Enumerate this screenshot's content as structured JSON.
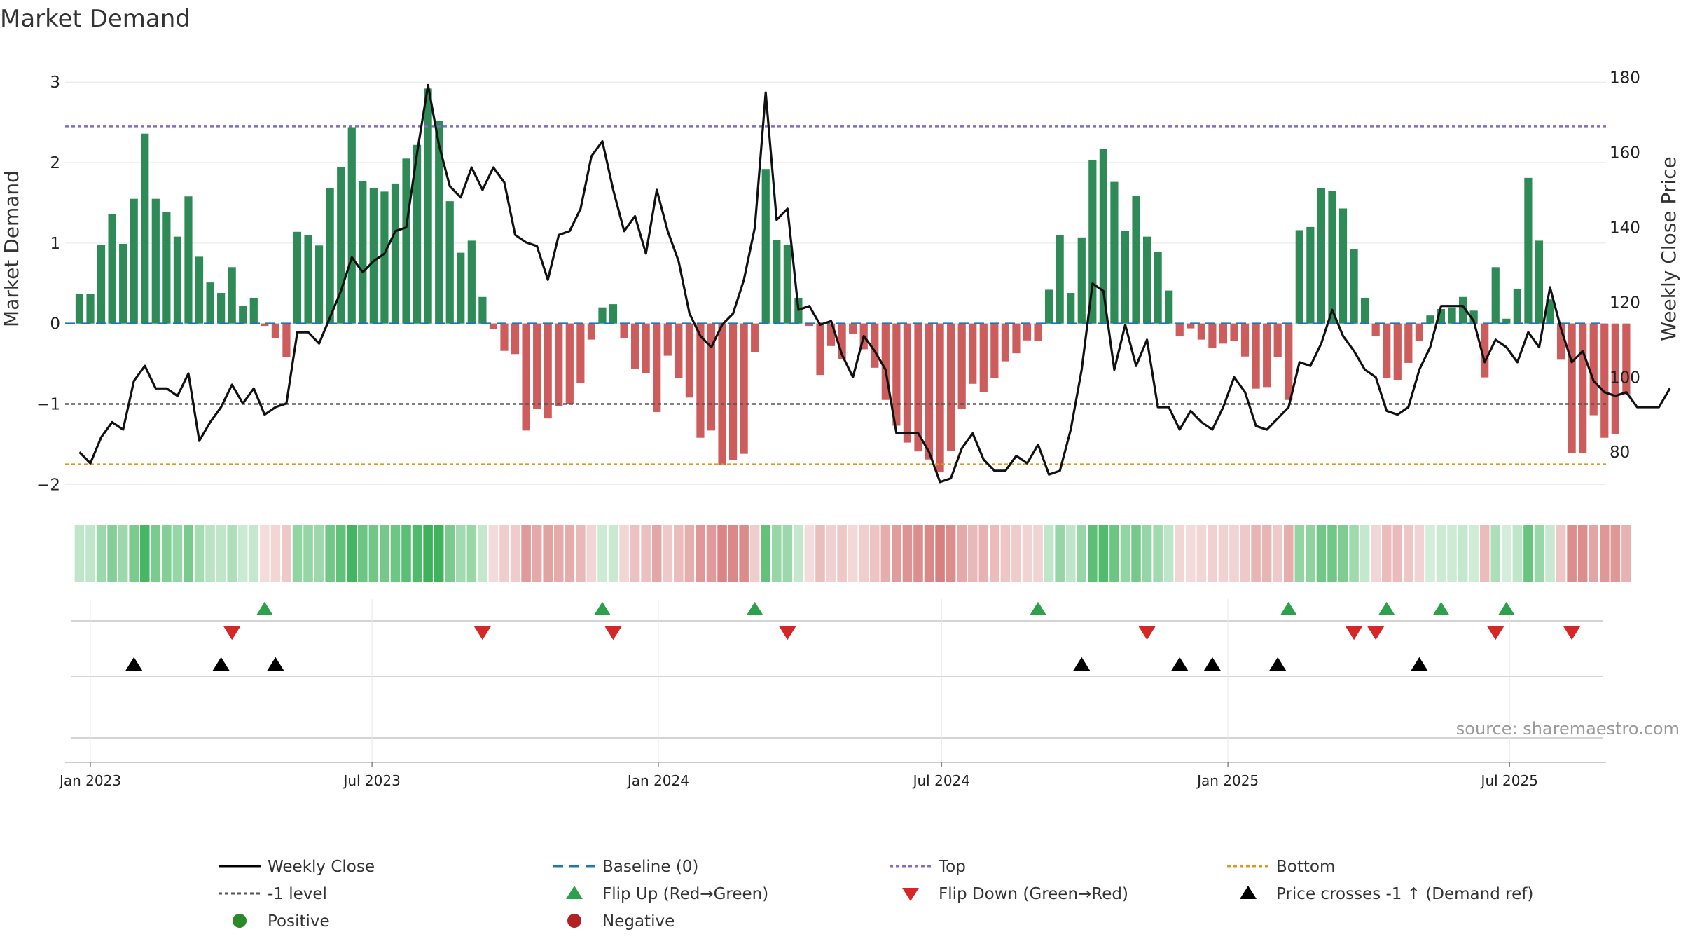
{
  "chart_data": {
    "type": "bar",
    "title": "Market Demand",
    "ylabel": "Market Demand",
    "y2label": "Weekly Close Price",
    "ylim": [
      -2.25,
      3.15
    ],
    "y2lim": [
      66,
      182
    ],
    "yticks": [
      -2,
      -1,
      0,
      1,
      2,
      3
    ],
    "y2ticks": [
      80,
      100,
      120,
      140,
      160,
      180
    ],
    "x_start_date": "2023-01-01",
    "x_end_date": "2025-09-01",
    "xticks": [
      {
        "date": "2023-01-01",
        "label": "Jan 2023"
      },
      {
        "date": "2023-07-01",
        "label": "Jul 2023"
      },
      {
        "date": "2024-01-01",
        "label": "Jan 2024"
      },
      {
        "date": "2024-07-01",
        "label": "Jul 2024"
      },
      {
        "date": "2025-01-01",
        "label": "Jan 2025"
      },
      {
        "date": "2025-07-01",
        "label": "Jul 2025"
      }
    ],
    "first_week": "2022-12-25",
    "levels": {
      "top": 2.45,
      "minus_one": -1.0,
      "bottom": -1.75,
      "baseline": 0
    },
    "demand": [
      0.37,
      0.37,
      0.98,
      1.36,
      0.99,
      1.55,
      2.36,
      1.55,
      1.39,
      1.08,
      1.58,
      0.83,
      0.51,
      0.38,
      0.7,
      0.22,
      0.32,
      -0.03,
      -0.18,
      -0.42,
      1.14,
      1.1,
      0.97,
      1.68,
      1.94,
      2.44,
      1.77,
      1.68,
      1.64,
      1.74,
      2.05,
      2.22,
      2.92,
      2.52,
      1.52,
      0.88,
      1.03,
      0.33,
      -0.07,
      -0.34,
      -0.38,
      -1.33,
      -1.06,
      -1.18,
      -1.03,
      -1.0,
      -0.74,
      -0.2,
      0.2,
      0.24,
      -0.18,
      -0.56,
      -0.62,
      -1.1,
      -0.4,
      -0.68,
      -0.92,
      -1.42,
      -1.33,
      -1.76,
      -1.7,
      -1.62,
      -0.36,
      1.92,
      1.04,
      0.98,
      0.32,
      -0.03,
      -0.64,
      -0.28,
      -0.44,
      -0.13,
      -0.32,
      -0.55,
      -0.95,
      -1.27,
      -1.48,
      -1.59,
      -1.69,
      -1.85,
      -1.58,
      -1.06,
      -0.75,
      -0.85,
      -0.68,
      -0.47,
      -0.37,
      -0.21,
      -0.22,
      0.42,
      1.1,
      0.38,
      1.07,
      2.03,
      2.17,
      1.76,
      1.15,
      1.59,
      1.08,
      0.89,
      0.41,
      -0.16,
      -0.06,
      -0.2,
      -0.3,
      -0.25,
      -0.22,
      -0.41,
      -0.81,
      -0.79,
      -0.42,
      -0.95,
      1.16,
      1.2,
      1.68,
      1.65,
      1.43,
      0.92,
      0.32,
      -0.16,
      -0.68,
      -0.7,
      -0.49,
      -0.22,
      0.1,
      0.18,
      0.2,
      0.33,
      0.16,
      -0.67,
      0.7,
      0.06,
      0.43,
      1.81,
      1.03,
      0.3,
      -0.45,
      -1.61,
      -1.61,
      -1.14,
      -1.42,
      -1.37,
      -0.88
    ],
    "price": [
      80,
      77,
      84,
      88,
      86,
      99,
      103,
      97,
      97,
      95,
      101,
      83,
      88,
      92,
      98,
      93,
      97,
      90,
      92,
      93,
      112,
      112,
      109,
      116,
      123,
      132,
      128,
      131,
      133,
      139,
      140,
      160,
      178,
      162,
      151,
      148,
      156,
      150,
      156,
      152,
      138,
      136,
      135,
      126,
      138,
      139,
      145,
      159,
      163,
      150,
      139,
      143,
      133,
      150,
      139,
      131,
      117,
      111,
      108,
      114,
      117,
      126,
      140,
      176,
      142,
      145,
      118,
      119,
      114,
      115,
      106,
      100,
      111,
      107,
      102,
      85,
      85,
      85,
      80,
      72,
      73,
      81,
      85,
      78,
      75,
      75,
      79,
      77,
      82,
      74,
      75,
      86,
      102,
      125,
      123,
      102,
      114,
      103,
      110,
      92,
      92,
      86,
      91,
      88,
      86,
      92,
      100,
      96,
      87,
      86,
      89,
      92,
      104,
      103,
      109,
      118,
      111,
      107,
      102,
      100,
      91,
      90,
      92,
      102,
      108,
      119,
      119,
      119,
      115,
      104,
      110,
      108,
      104,
      112,
      108,
      124,
      113,
      104,
      107,
      99,
      96,
      95,
      96,
      92,
      92,
      92,
      97
    ],
    "heatmap_row": "demand per week; green shade for positive values, red shade for negative values, intensity by magnitude",
    "flip_up_weeks": [
      17,
      48,
      62,
      88,
      111,
      120,
      125,
      131
    ],
    "flip_down_weeks": [
      14,
      37,
      49,
      65,
      98,
      117,
      119,
      130,
      137
    ],
    "price_cross_weeks": [
      5,
      13,
      18,
      92,
      101,
      104,
      110,
      123
    ],
    "legend": [
      {
        "key": "weekly-close",
        "label": "Weekly Close",
        "marker": "line",
        "color": "#000000"
      },
      {
        "key": "baseline",
        "label": "Baseline (0)",
        "marker": "dashed",
        "color": "#1f77b4"
      },
      {
        "key": "top",
        "label": "Top",
        "marker": "dotted",
        "color": "#7b6fc9"
      },
      {
        "key": "bottom",
        "label": "Bottom",
        "marker": "dotted",
        "color": "#e69422"
      },
      {
        "key": "minus-one",
        "label": "-1 level",
        "marker": "dotted",
        "color": "#555555"
      },
      {
        "key": "flip-up",
        "label": "Flip Up (Red→Green)",
        "marker": "triangle-up",
        "color": "#2ca04c"
      },
      {
        "key": "flip-down",
        "label": "Flip Down (Green→Red)",
        "marker": "triangle-down",
        "color": "#d62728"
      },
      {
        "key": "price-cross",
        "label": "Price crosses -1 ↑ (Demand ref)",
        "marker": "triangle-up",
        "color": "#000000"
      },
      {
        "key": "positive",
        "label": "Positive",
        "marker": "circle",
        "color": "#2a8a2a"
      },
      {
        "key": "negative",
        "label": "Negative",
        "marker": "circle",
        "color": "#b22222"
      }
    ],
    "source": "source: sharemaestro.com"
  },
  "colors": {
    "positive_bar": "#2e8b57",
    "negative_bar": "#cd5c5c",
    "heat_positive": "#3cb25a",
    "heat_negative": "#cd5c5c",
    "price_line": "#111111",
    "flip_up": "#2ca04c",
    "flip_down": "#d62728",
    "price_cross": "#000000",
    "grid": "#e6e6e6",
    "text": "#333333"
  }
}
